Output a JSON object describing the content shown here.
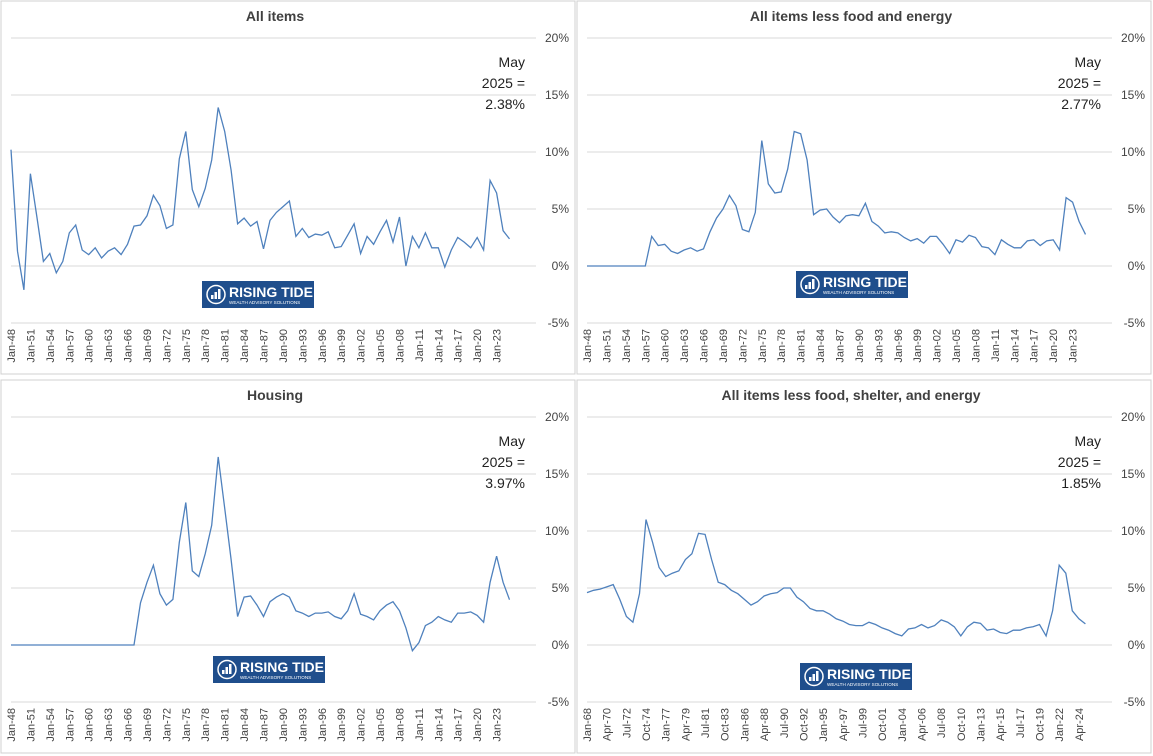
{
  "logo": {
    "name": "RISING TIDE",
    "tagline": "WEALTH ADVISORY SOLUTIONS"
  },
  "chart_data": [
    {
      "type": "line",
      "title": "All items",
      "annotation": [
        "May",
        "2025 =",
        "2.38%"
      ],
      "color": "#4f81bd",
      "categories": [
        "Jan-48",
        null,
        null,
        "Jan-51",
        null,
        null,
        "Jan-54",
        null,
        null,
        "Jan-57",
        null,
        null,
        "Jan-60",
        null,
        null,
        "Jan-63",
        null,
        null,
        "Jan-66",
        null,
        null,
        "Jan-69",
        null,
        null,
        "Jan-72",
        null,
        null,
        "Jan-75",
        null,
        null,
        "Jan-78",
        null,
        null,
        "Jan-81",
        null,
        null,
        "Jan-84",
        null,
        null,
        "Jan-87",
        null,
        null,
        "Jan-90",
        null,
        null,
        "Jan-93",
        null,
        null,
        "Jan-96",
        null,
        null,
        "Jan-99",
        null,
        null,
        "Jan-02",
        null,
        null,
        "Jan-05",
        null,
        null,
        "Jan-08",
        null,
        null,
        "Jan-11",
        null,
        null,
        "Jan-14",
        null,
        null,
        "Jan-17",
        null,
        null,
        "Jan-20",
        null,
        null,
        "Jan-23",
        null,
        null
      ],
      "values": [
        10.2,
        1.3,
        -2.1,
        8.1,
        4.3,
        0.4,
        1.1,
        -0.6,
        0.4,
        2.9,
        3.6,
        1.4,
        1.0,
        1.6,
        0.7,
        1.3,
        1.6,
        1.0,
        1.9,
        3.5,
        3.6,
        4.4,
        6.2,
        5.3,
        3.3,
        3.6,
        9.4,
        11.8,
        6.7,
        5.2,
        6.8,
        9.3,
        13.9,
        11.8,
        8.4,
        3.7,
        4.2,
        3.5,
        3.9,
        1.5,
        4.0,
        4.7,
        5.2,
        5.7,
        2.6,
        3.3,
        2.5,
        2.8,
        2.7,
        3.0,
        1.6,
        1.7,
        2.7,
        3.7,
        1.1,
        2.6,
        1.9,
        3.0,
        4.0,
        2.1,
        4.3,
        0.0,
        2.6,
        1.6,
        2.9,
        1.6,
        1.6,
        -0.1,
        1.4,
        2.5,
        2.1,
        1.6,
        2.5,
        1.4,
        7.5,
        6.4,
        3.1,
        2.38
      ],
      "ylim": [
        -5,
        20
      ],
      "yticks": [
        {
          "value": -5,
          "label": "-5%"
        },
        {
          "value": 0,
          "label": "0%"
        },
        {
          "value": 5,
          "label": "5%"
        },
        {
          "value": 10,
          "label": "10%"
        },
        {
          "value": 15,
          "label": "15%"
        },
        {
          "value": 20,
          "label": "20%"
        }
      ],
      "grid": true
    },
    {
      "type": "line",
      "title": "All items less food and energy",
      "annotation": [
        "May",
        "2025 =",
        "2.77%"
      ],
      "color": "#4f81bd",
      "categories": [
        "Jan-48",
        null,
        null,
        "Jan-51",
        null,
        null,
        "Jan-54",
        null,
        null,
        "Jan-57",
        null,
        null,
        "Jan-60",
        null,
        null,
        "Jan-63",
        null,
        null,
        "Jan-66",
        null,
        null,
        "Jan-69",
        null,
        null,
        "Jan-72",
        null,
        null,
        "Jan-75",
        null,
        null,
        "Jan-78",
        null,
        null,
        "Jan-81",
        null,
        null,
        "Jan-84",
        null,
        null,
        "Jan-87",
        null,
        null,
        "Jan-90",
        null,
        null,
        "Jan-93",
        null,
        null,
        "Jan-96",
        null,
        null,
        "Jan-99",
        null,
        null,
        "Jan-02",
        null,
        null,
        "Jan-05",
        null,
        null,
        "Jan-08",
        null,
        null,
        "Jan-11",
        null,
        null,
        "Jan-14",
        null,
        null,
        "Jan-17",
        null,
        null,
        "Jan-20",
        null,
        null,
        "Jan-23",
        null,
        null
      ],
      "values": [
        0,
        0,
        0,
        0,
        0,
        0,
        0,
        0,
        0,
        0,
        2.6,
        1.8,
        1.9,
        1.3,
        1.1,
        1.4,
        1.6,
        1.3,
        1.5,
        3.0,
        4.2,
        5.0,
        6.2,
        5.3,
        3.2,
        3.0,
        4.7,
        11.0,
        7.2,
        6.4,
        6.5,
        8.5,
        11.8,
        11.6,
        9.3,
        4.5,
        4.9,
        5.0,
        4.3,
        3.8,
        4.4,
        4.5,
        4.4,
        5.5,
        3.9,
        3.5,
        2.9,
        3.0,
        2.9,
        2.5,
        2.2,
        2.4,
        2.0,
        2.6,
        2.6,
        1.9,
        1.1,
        2.3,
        2.1,
        2.7,
        2.5,
        1.7,
        1.6,
        1.0,
        2.3,
        1.9,
        1.6,
        1.6,
        2.2,
        2.3,
        1.8,
        2.2,
        2.3,
        1.4,
        6.0,
        5.6,
        3.9,
        2.77
      ],
      "ylim": [
        -5,
        20
      ],
      "yticks": [
        {
          "value": -5,
          "label": "-5%"
        },
        {
          "value": 0,
          "label": "0%"
        },
        {
          "value": 5,
          "label": "5%"
        },
        {
          "value": 10,
          "label": "10%"
        },
        {
          "value": 15,
          "label": "15%"
        },
        {
          "value": 20,
          "label": "20%"
        }
      ],
      "grid": true
    },
    {
      "type": "line",
      "title": "Housing",
      "annotation": [
        "May",
        "2025 =",
        "3.97%"
      ],
      "color": "#4f81bd",
      "categories": [
        "Jan-48",
        null,
        null,
        "Jan-51",
        null,
        null,
        "Jan-54",
        null,
        null,
        "Jan-57",
        null,
        null,
        "Jan-60",
        null,
        null,
        "Jan-63",
        null,
        null,
        "Jan-66",
        null,
        null,
        "Jan-69",
        null,
        null,
        "Jan-72",
        null,
        null,
        "Jan-75",
        null,
        null,
        "Jan-78",
        null,
        null,
        "Jan-81",
        null,
        null,
        "Jan-84",
        null,
        null,
        "Jan-87",
        null,
        null,
        "Jan-90",
        null,
        null,
        "Jan-93",
        null,
        null,
        "Jan-96",
        null,
        null,
        "Jan-99",
        null,
        null,
        "Jan-02",
        null,
        null,
        "Jan-05",
        null,
        null,
        "Jan-08",
        null,
        null,
        "Jan-11",
        null,
        null,
        "Jan-14",
        null,
        null,
        "Jan-17",
        null,
        null,
        "Jan-20",
        null,
        null,
        "Jan-23",
        null,
        null
      ],
      "values": [
        0,
        0,
        0,
        0,
        0,
        0,
        0,
        0,
        0,
        0,
        0,
        0,
        0,
        0,
        0,
        0,
        0,
        0,
        0,
        0,
        3.7,
        5.5,
        7.0,
        4.5,
        3.5,
        4.0,
        9.0,
        12.5,
        6.5,
        6.0,
        8.0,
        10.5,
        16.5,
        12.0,
        7.5,
        2.5,
        4.2,
        4.3,
        3.5,
        2.5,
        3.8,
        4.2,
        4.5,
        4.2,
        3.0,
        2.8,
        2.5,
        2.8,
        2.8,
        2.9,
        2.5,
        2.3,
        3.0,
        4.5,
        2.7,
        2.5,
        2.2,
        3.0,
        3.5,
        3.8,
        3.0,
        1.5,
        -0.5,
        0.2,
        1.7,
        2.0,
        2.5,
        2.2,
        2.0,
        2.8,
        2.8,
        2.9,
        2.6,
        2.0,
        5.5,
        7.8,
        5.5,
        3.97
      ],
      "ylim": [
        -5,
        20
      ],
      "yticks": [
        {
          "value": -5,
          "label": "-5%"
        },
        {
          "value": 0,
          "label": "0%"
        },
        {
          "value": 5,
          "label": "5%"
        },
        {
          "value": 10,
          "label": "10%"
        },
        {
          "value": 15,
          "label": "15%"
        },
        {
          "value": 20,
          "label": "20%"
        }
      ],
      "grid": true
    },
    {
      "type": "line",
      "title": "All items less food, shelter, and energy",
      "annotation": [
        "May",
        "2025 =",
        "1.85%"
      ],
      "color": "#4f81bd",
      "categories": [
        "Jan-68",
        null,
        null,
        "Apr-70",
        null,
        null,
        "Jul-72",
        null,
        null,
        "Oct-74",
        null,
        null,
        "Jan-77",
        null,
        null,
        "Apr-79",
        null,
        null,
        "Jul-81",
        null,
        null,
        "Oct-83",
        null,
        null,
        "Jan-86",
        null,
        null,
        "Apr-88",
        null,
        null,
        "Jul-90",
        null,
        null,
        "Oct-92",
        null,
        null,
        "Jan-95",
        null,
        null,
        "Apr-97",
        null,
        null,
        "Jul-99",
        null,
        null,
        "Oct-01",
        null,
        null,
        "Jan-04",
        null,
        null,
        "Apr-06",
        null,
        null,
        "Jul-08",
        null,
        null,
        "Oct-10",
        null,
        null,
        "Jan-13",
        null,
        null,
        "Apr-15",
        null,
        null,
        "Jul-17",
        null,
        null,
        "Oct-19",
        null,
        null,
        "Jan-22",
        null,
        null,
        "Apr-24",
        null
      ],
      "values": [
        4.6,
        4.8,
        4.9,
        5.1,
        5.3,
        4.0,
        2.5,
        2.0,
        4.5,
        11.0,
        9.0,
        6.8,
        6.0,
        6.3,
        6.5,
        7.5,
        8.0,
        9.8,
        9.7,
        7.5,
        5.5,
        5.3,
        4.8,
        4.5,
        4.0,
        3.5,
        3.8,
        4.3,
        4.5,
        4.6,
        5.0,
        5.0,
        4.2,
        3.8,
        3.2,
        3.0,
        3.0,
        2.7,
        2.3,
        2.1,
        1.8,
        1.7,
        1.7,
        2.0,
        1.8,
        1.5,
        1.3,
        1.0,
        0.8,
        1.4,
        1.5,
        1.8,
        1.5,
        1.7,
        2.2,
        2.0,
        1.6,
        0.8,
        1.6,
        2.0,
        1.9,
        1.3,
        1.4,
        1.1,
        1.0,
        1.3,
        1.3,
        1.5,
        1.6,
        1.8,
        0.8,
        3.0,
        7.0,
        6.3,
        3.0,
        2.3,
        1.85
      ],
      "ylim": [
        -5,
        20
      ],
      "yticks": [
        {
          "value": -5,
          "label": "-5%"
        },
        {
          "value": 0,
          "label": "0%"
        },
        {
          "value": 5,
          "label": "5%"
        },
        {
          "value": 10,
          "label": "10%"
        },
        {
          "value": 15,
          "label": "15%"
        },
        {
          "value": 20,
          "label": "20%"
        }
      ],
      "grid": true
    }
  ]
}
